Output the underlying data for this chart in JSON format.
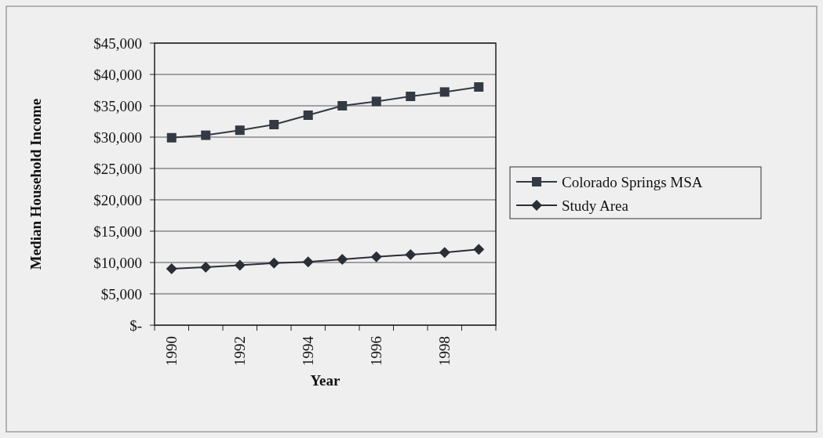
{
  "chart_data": {
    "type": "line",
    "xlabel": "Year",
    "ylabel": "Median Household Income",
    "categories": [
      "1990",
      null,
      "1992",
      null,
      "1994",
      null,
      "1996",
      null,
      "1998",
      null
    ],
    "series": [
      {
        "name": "Colorado Springs MSA",
        "color": "#333a44",
        "marker": "square",
        "values": [
          29900,
          30300,
          31100,
          32000,
          33500,
          35000,
          35700,
          36500,
          37200,
          38000
        ]
      },
      {
        "name": "Study Area",
        "color": "#2a2e36",
        "marker": "diamond",
        "values": [
          9000,
          9250,
          9550,
          9900,
          10100,
          10500,
          10900,
          11250,
          11600,
          12100
        ]
      }
    ],
    "ylim": [
      0,
      45000
    ],
    "yticks": [
      {
        "value": 0,
        "label": "$-"
      },
      {
        "value": 5000,
        "label": "$5,000"
      },
      {
        "value": 10000,
        "label": "$10,000"
      },
      {
        "value": 15000,
        "label": "$15,000"
      },
      {
        "value": 20000,
        "label": "$20,000"
      },
      {
        "value": 25000,
        "label": "$25,000"
      },
      {
        "value": 30000,
        "label": "$30,000"
      },
      {
        "value": 35000,
        "label": "$35,000"
      },
      {
        "value": 40000,
        "label": "$40,000"
      },
      {
        "value": 45000,
        "label": "$45,000"
      }
    ],
    "grid": "y",
    "legend": "right"
  }
}
